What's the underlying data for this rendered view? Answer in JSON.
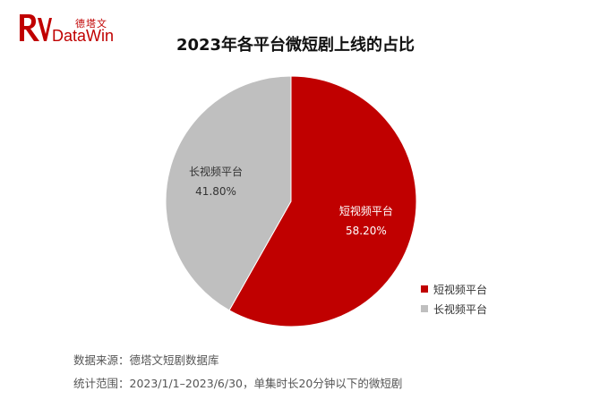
{
  "brand": {
    "name_cn": "德塔文",
    "name_en": "DataWin",
    "color": "#c00000"
  },
  "chart_data": {
    "type": "pie",
    "title": "2023年各平台微短剧上线的占比",
    "slices": [
      {
        "name": "短视频平台",
        "percent_label": "58.20%",
        "value": 58.2,
        "color": "#c00000",
        "label_color": "#ffffff"
      },
      {
        "name": "长视频平台",
        "percent_label": "41.80%",
        "value": 41.8,
        "color": "#bfbfbf",
        "label_color": "#333333"
      }
    ],
    "legend_position": "bottom-right"
  },
  "footnotes": {
    "source": "数据来源：德塔文短剧数据库",
    "scope": "统计范围：2023/1/1–2023/6/30，单集时长20分钟以下的微短剧"
  }
}
